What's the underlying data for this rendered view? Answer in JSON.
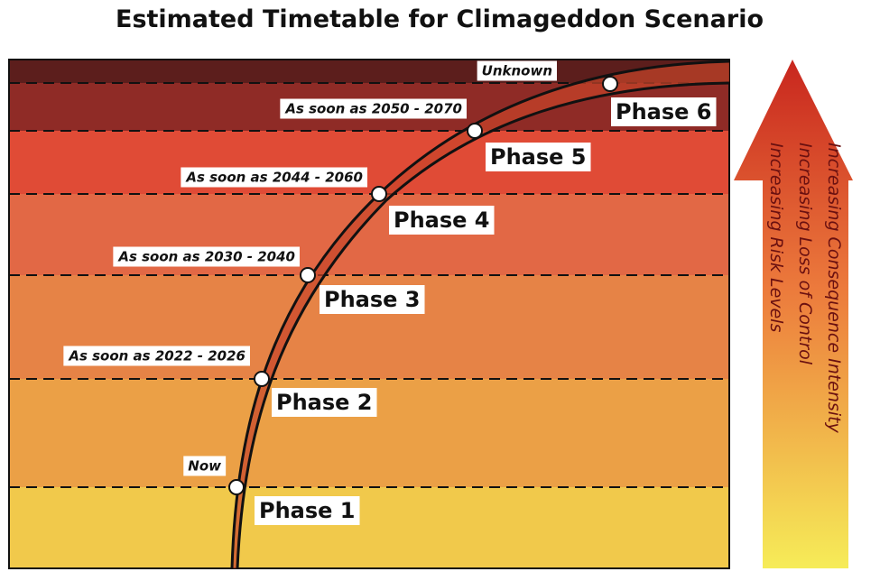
{
  "header": {
    "title": "Estimated Timetable for Climageddon Scenario"
  },
  "phases": [
    {
      "label": "Phase 1",
      "timing": "Now"
    },
    {
      "label": "Phase 2",
      "timing": "As soon as 2022 - 2026"
    },
    {
      "label": "Phase 3",
      "timing": "As soon as 2030 - 2040"
    },
    {
      "label": "Phase 4",
      "timing": "As soon as 2044 - 2060"
    },
    {
      "label": "Phase 5",
      "timing": "As soon as 2050 - 2070"
    },
    {
      "label": "Phase 6",
      "timing": "Unknown"
    }
  ],
  "arrow_labels": [
    "Increasing Consequence Intensity",
    "Increasing Loss of Control",
    "Increasing Risk Levels"
  ]
}
